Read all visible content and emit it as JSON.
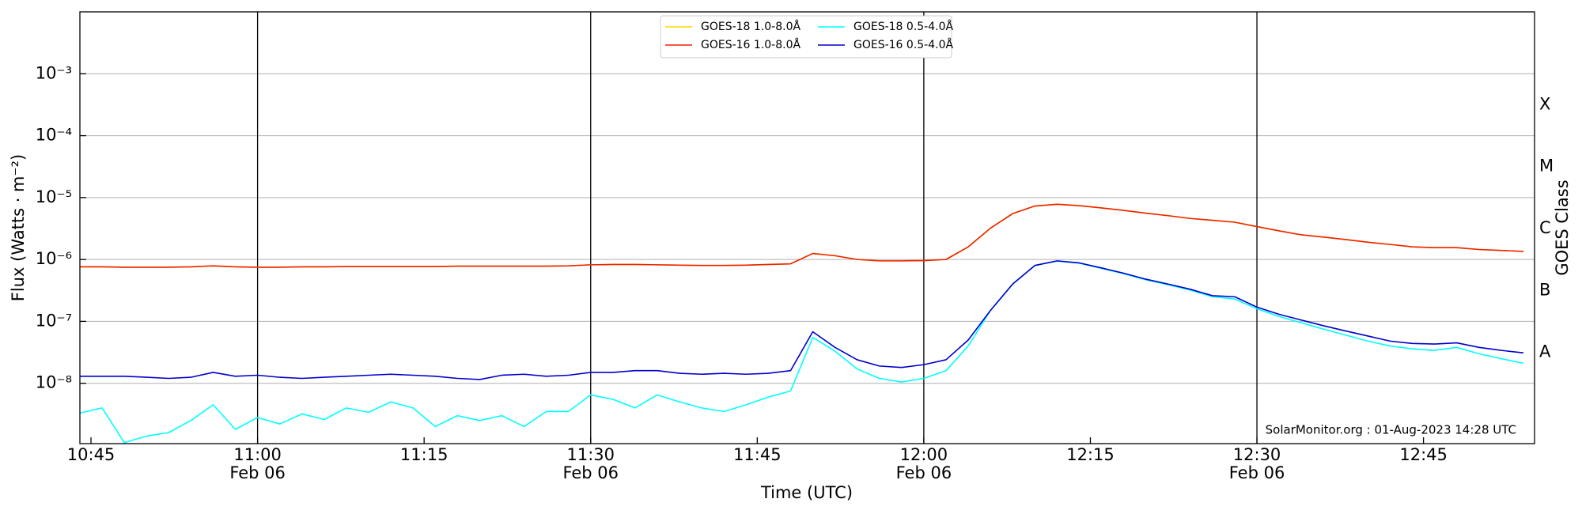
{
  "chart_data": {
    "type": "line",
    "x_label": "Time (UTC)",
    "y_label": "Flux (Watts · m⁻²)",
    "y2_label": "GOES Class",
    "annotation": "SolarMonitor.org : 01-Aug-2023 14:28 UTC",
    "log_y": true,
    "grid": true,
    "legend": "upper center",
    "x": [
      "10:44",
      "10:46",
      "10:48",
      "10:50",
      "10:52",
      "10:54",
      "10:56",
      "10:58",
      "11:00",
      "11:02",
      "11:04",
      "11:06",
      "11:08",
      "11:10",
      "11:12",
      "11:14",
      "11:16",
      "11:18",
      "11:20",
      "11:22",
      "11:24",
      "11:26",
      "11:28",
      "11:30",
      "11:32",
      "11:34",
      "11:36",
      "11:38",
      "11:40",
      "11:42",
      "11:44",
      "11:46",
      "11:48",
      "11:50",
      "11:52",
      "11:54",
      "11:56",
      "11:58",
      "12:00",
      "12:02",
      "12:04",
      "12:06",
      "12:08",
      "12:10",
      "12:12",
      "12:14",
      "12:16",
      "12:18",
      "12:20",
      "12:22",
      "12:24",
      "12:26",
      "12:28",
      "12:30",
      "12:32",
      "12:34",
      "12:36",
      "12:38",
      "12:40",
      "12:42",
      "12:44",
      "12:46",
      "12:48",
      "12:50",
      "12:52",
      "12:54"
    ],
    "xlim": [
      "10:44",
      "12:55"
    ],
    "xticks": [
      "10:45",
      "11:00",
      "11:15",
      "11:30",
      "11:45",
      "12:00",
      "12:15",
      "12:30",
      "12:45"
    ],
    "x_date_labels": [
      null,
      "Feb 06",
      null,
      "Feb 06",
      null,
      "Feb 06",
      null,
      "Feb 06",
      null
    ],
    "vlines": [
      "11:00",
      "11:30",
      "12:00",
      "12:30"
    ],
    "ylim": [
      1.06e-09,
      0.01
    ],
    "yticks": [
      {
        "value": 1e-08,
        "label": "10⁻⁸"
      },
      {
        "value": 1e-07,
        "label": "10⁻⁷"
      },
      {
        "value": 1e-06,
        "label": "10⁻⁶"
      },
      {
        "value": 1e-05,
        "label": "10⁻⁵"
      },
      {
        "value": 0.0001,
        "label": "10⁻⁴"
      },
      {
        "value": 0.001,
        "label": "10⁻³"
      }
    ],
    "y2lim": [
      1.06e-09,
      0.01
    ],
    "y2ticks": [
      {
        "value": 3.16e-08,
        "label": "A"
      },
      {
        "value": 3.16e-07,
        "label": "B"
      },
      {
        "value": 3.16e-06,
        "label": "C"
      },
      {
        "value": 3.16e-05,
        "label": "M"
      },
      {
        "value": 0.000316,
        "label": "X"
      }
    ],
    "series": [
      {
        "name": "GOES-18 1.0-8.0Å",
        "color": "#ffd700",
        "values": [
          7.6e-07,
          7.6e-07,
          7.5e-07,
          7.5e-07,
          7.5e-07,
          7.6e-07,
          7.9e-07,
          7.6e-07,
          7.5e-07,
          7.5e-07,
          7.6e-07,
          7.6e-07,
          7.7e-07,
          7.7e-07,
          7.7e-07,
          7.7e-07,
          7.7e-07,
          7.8e-07,
          7.8e-07,
          7.8e-07,
          7.8e-07,
          7.8e-07,
          7.9e-07,
          8.2e-07,
          8.3e-07,
          8.3e-07,
          8.2e-07,
          8.1e-07,
          8e-07,
          8e-07,
          8.1e-07,
          8.3e-07,
          8.5e-07,
          1.25e-06,
          1.15e-06,
          1e-06,
          9.5e-07,
          9.5e-07,
          9.6e-07,
          1e-06,
          1.6e-06,
          3.2e-06,
          5.5e-06,
          7.3e-06,
          7.8e-06,
          7.4e-06,
          6.8e-06,
          6.2e-06,
          5.6e-06,
          5.1e-06,
          4.6e-06,
          4.3e-06,
          4e-06,
          3.4e-06,
          2.9e-06,
          2.5e-06,
          2.3e-06,
          2.1e-06,
          1.9e-06,
          1.75e-06,
          1.6e-06,
          1.55e-06,
          1.55e-06,
          1.45e-06,
          1.4e-06,
          1.35e-06
        ]
      },
      {
        "name": "GOES-16 1.0-8.0Å",
        "color": "#ee2200",
        "values": [
          7.6e-07,
          7.6e-07,
          7.5e-07,
          7.5e-07,
          7.5e-07,
          7.6e-07,
          7.9e-07,
          7.6e-07,
          7.5e-07,
          7.5e-07,
          7.6e-07,
          7.6e-07,
          7.7e-07,
          7.7e-07,
          7.7e-07,
          7.7e-07,
          7.7e-07,
          7.8e-07,
          7.8e-07,
          7.8e-07,
          7.8e-07,
          7.8e-07,
          7.9e-07,
          8.2e-07,
          8.3e-07,
          8.3e-07,
          8.2e-07,
          8.1e-07,
          8e-07,
          8e-07,
          8.1e-07,
          8.3e-07,
          8.5e-07,
          1.25e-06,
          1.15e-06,
          1e-06,
          9.5e-07,
          9.5e-07,
          9.6e-07,
          1e-06,
          1.6e-06,
          3.2e-06,
          5.5e-06,
          7.3e-06,
          7.8e-06,
          7.4e-06,
          6.8e-06,
          6.2e-06,
          5.6e-06,
          5.1e-06,
          4.6e-06,
          4.3e-06,
          4e-06,
          3.4e-06,
          2.9e-06,
          2.5e-06,
          2.3e-06,
          2.1e-06,
          1.9e-06,
          1.75e-06,
          1.6e-06,
          1.55e-06,
          1.55e-06,
          1.45e-06,
          1.4e-06,
          1.35e-06
        ]
      },
      {
        "name": "GOES-18 0.5-4.0Å",
        "color": "#00ffff",
        "values": [
          3.3e-09,
          4e-09,
          1.1e-09,
          1.4e-09,
          1.6e-09,
          2.5e-09,
          4.5e-09,
          1.8e-09,
          2.8e-09,
          2.2e-09,
          3.2e-09,
          2.6e-09,
          4e-09,
          3.4e-09,
          5e-09,
          4e-09,
          2e-09,
          3e-09,
          2.5e-09,
          3e-09,
          2e-09,
          3.5e-09,
          3.5e-09,
          6.5e-09,
          5.5e-09,
          4e-09,
          6.5e-09,
          5e-09,
          4e-09,
          3.5e-09,
          4.5e-09,
          6e-09,
          7.5e-09,
          5.5e-08,
          3.3e-08,
          1.7e-08,
          1.2e-08,
          1.05e-08,
          1.2e-08,
          1.6e-08,
          4e-08,
          1.5e-07,
          4e-07,
          8e-07,
          9.4e-07,
          8.7e-07,
          7.2e-07,
          5.9e-07,
          4.7e-07,
          3.9e-07,
          3.2e-07,
          2.5e-07,
          2.3e-07,
          1.6e-07,
          1.2e-07,
          9.5e-08,
          7.5e-08,
          6e-08,
          4.8e-08,
          4e-08,
          3.6e-08,
          3.4e-08,
          3.8e-08,
          3e-08,
          2.5e-08,
          2.1e-08
        ]
      },
      {
        "name": "GOES-16 0.5-4.0Å",
        "color": "#0000cc",
        "values": [
          1.3e-08,
          1.3e-08,
          1.3e-08,
          1.25e-08,
          1.2e-08,
          1.25e-08,
          1.5e-08,
          1.3e-08,
          1.35e-08,
          1.25e-08,
          1.2e-08,
          1.25e-08,
          1.3e-08,
          1.35e-08,
          1.4e-08,
          1.35e-08,
          1.3e-08,
          1.2e-08,
          1.15e-08,
          1.35e-08,
          1.4e-08,
          1.3e-08,
          1.35e-08,
          1.5e-08,
          1.5e-08,
          1.6e-08,
          1.6e-08,
          1.45e-08,
          1.4e-08,
          1.45e-08,
          1.4e-08,
          1.45e-08,
          1.6e-08,
          6.8e-08,
          3.8e-08,
          2.4e-08,
          1.9e-08,
          1.8e-08,
          2e-08,
          2.4e-08,
          5e-08,
          1.5e-07,
          4e-07,
          8e-07,
          9.5e-07,
          8.8e-07,
          7.3e-07,
          6e-07,
          4.8e-07,
          4e-07,
          3.3e-07,
          2.6e-07,
          2.5e-07,
          1.7e-07,
          1.3e-07,
          1.05e-07,
          8.5e-08,
          7e-08,
          5.8e-08,
          4.8e-08,
          4.4e-08,
          4.3e-08,
          4.5e-08,
          3.8e-08,
          3.4e-08,
          3.1e-08
        ]
      }
    ]
  }
}
